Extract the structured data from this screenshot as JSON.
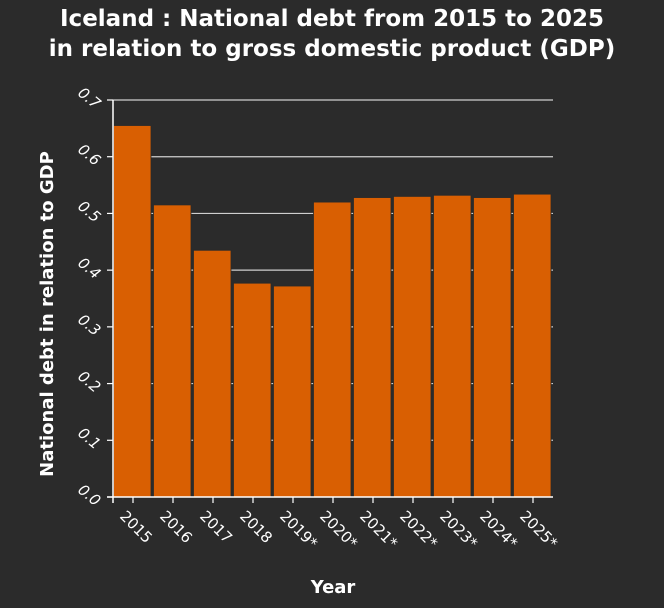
{
  "title_lines": [
    "Iceland : National debt from 2015 to 2025",
    "in relation to gross domestic product (GDP)"
  ],
  "colors": {
    "background": "#2b2b2b",
    "bar": "#d95f02",
    "bar_edge": "#2b2b2b",
    "grid": "#cfcfcf",
    "axis": "#ffffff",
    "text": "#ffffff"
  },
  "chart_data": {
    "type": "bar",
    "title": "Iceland : National debt from 2015 to 2025 in relation to gross domestic product (GDP)",
    "xlabel": "Year",
    "ylabel": "National debt in relation to GDP",
    "categories": [
      "2015",
      "2016",
      "2017",
      "2018",
      "2019*",
      "2020*",
      "2021*",
      "2022*",
      "2023*",
      "2024*",
      "2025*"
    ],
    "values": [
      0.655,
      0.515,
      0.435,
      0.377,
      0.372,
      0.52,
      0.528,
      0.53,
      0.532,
      0.528,
      0.534
    ],
    "ylim": [
      0,
      0.7
    ],
    "yticks": [
      "0.0",
      "0.1",
      "0.2",
      "0.3",
      "0.4",
      "0.5",
      "0.6",
      "0.7"
    ],
    "grid": true,
    "legend": false
  }
}
